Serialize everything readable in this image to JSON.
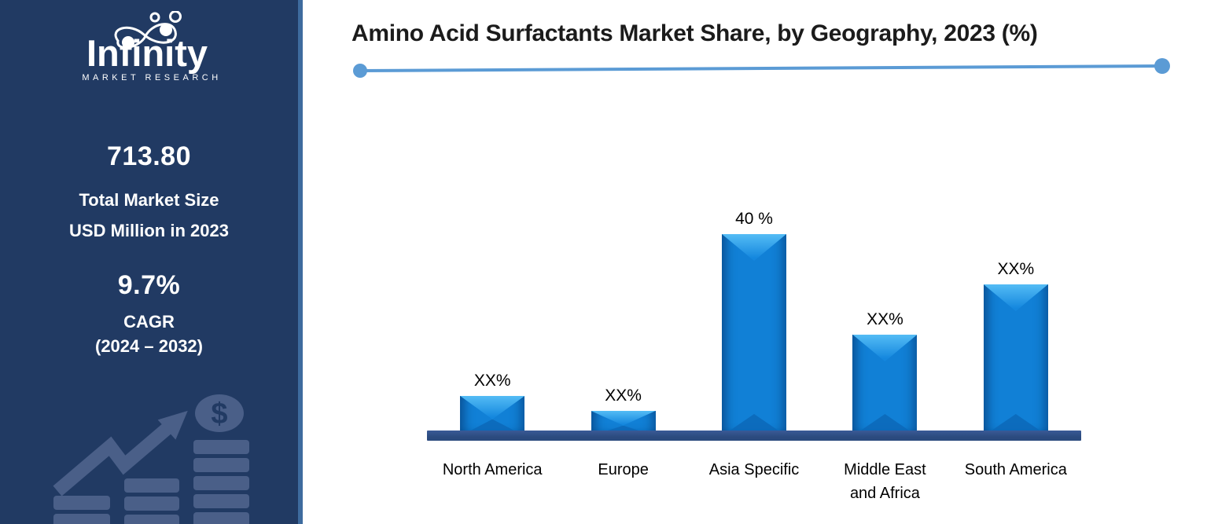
{
  "sidebar": {
    "logo": {
      "name": "Infinity",
      "subtitle": "MARKET RESEARCH"
    },
    "market_size": {
      "value": "713.80",
      "label_line1": "Total Market Size",
      "label_line2": "USD Million in 2023"
    },
    "cagr": {
      "value": "9.7%",
      "label": "CAGR",
      "period": "(2024 – 2032)"
    },
    "icons": [
      "growth-arrow-icon",
      "dollar-coin-icon",
      "coin-stack-icon"
    ],
    "dollar_glyph": "$"
  },
  "header": {
    "title": "Amino Acid Surfactants Market Share, by Geography, 2023 (%)"
  },
  "chart_data": {
    "type": "bar",
    "title": "Amino Acid Surfactants Market Share, by Geography, 2023 (%)",
    "categories": [
      "North America",
      "Europe",
      "Asia Specific",
      "Middle East and Africa",
      "South America"
    ],
    "category_display_lines": [
      [
        "North America"
      ],
      [
        "Europe"
      ],
      [
        "Asia Specific"
      ],
      [
        "Middle East",
        "and Africa"
      ],
      [
        "South America"
      ]
    ],
    "data_labels": [
      "XX%",
      "XX%",
      "40 %",
      "XX%",
      "XX%"
    ],
    "values_pct_est": [
      8,
      5,
      40,
      20,
      30
    ],
    "ylim": [
      0,
      45
    ],
    "grid": false,
    "legend": false,
    "xlabel": "",
    "ylabel": ""
  },
  "colors": {
    "sidebar_bg": "#213A63",
    "sidebar_accent_border": "#3E6B9E",
    "sidebar_graphic": "#4A5F88",
    "bar_fill": "#1180D6",
    "bar_highlight": "#54BCF5",
    "bar_shadow": "#0B67B6",
    "axis_bar": "#2B4A7E",
    "title_underline": "#5B9BD5",
    "title_text": "#1B1B1B",
    "sidebar_text": "#FFFFFF"
  }
}
